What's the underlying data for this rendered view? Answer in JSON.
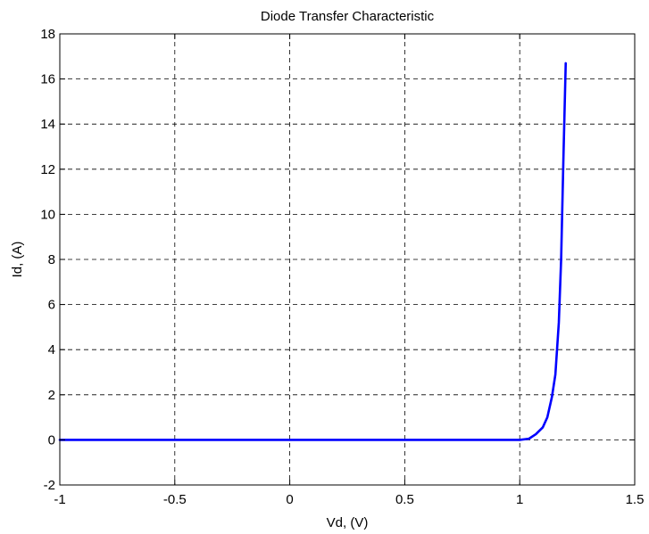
{
  "chart_data": {
    "type": "line",
    "title": "Diode Transfer Characteristic",
    "xlabel": "Vd, (V)",
    "ylabel": "Id, (A)",
    "xlim": [
      -1,
      1.5
    ],
    "ylim": [
      -2,
      18
    ],
    "xticks": [
      -1,
      -0.5,
      0,
      0.5,
      1,
      1.5
    ],
    "yticks": [
      -2,
      0,
      2,
      4,
      6,
      8,
      10,
      12,
      14,
      16,
      18
    ],
    "xtick_labels": [
      "-1",
      "-0.5",
      "0",
      "0.5",
      "1",
      "1.5"
    ],
    "ytick_labels": [
      "-2",
      "0",
      "2",
      "4",
      "6",
      "8",
      "10",
      "12",
      "14",
      "16",
      "18"
    ],
    "grid": true,
    "series": [
      {
        "color": "#0000ff",
        "x": [
          -1,
          -0.5,
          0,
          0.5,
          1.0,
          1.04,
          1.07,
          1.1,
          1.12,
          1.14,
          1.155,
          1.17,
          1.18,
          1.19,
          1.2
        ],
        "y": [
          0,
          0,
          0,
          0,
          0,
          0.05,
          0.25,
          0.55,
          1.0,
          1.9,
          2.9,
          5.2,
          8.0,
          12.5,
          16.7
        ]
      }
    ]
  }
}
